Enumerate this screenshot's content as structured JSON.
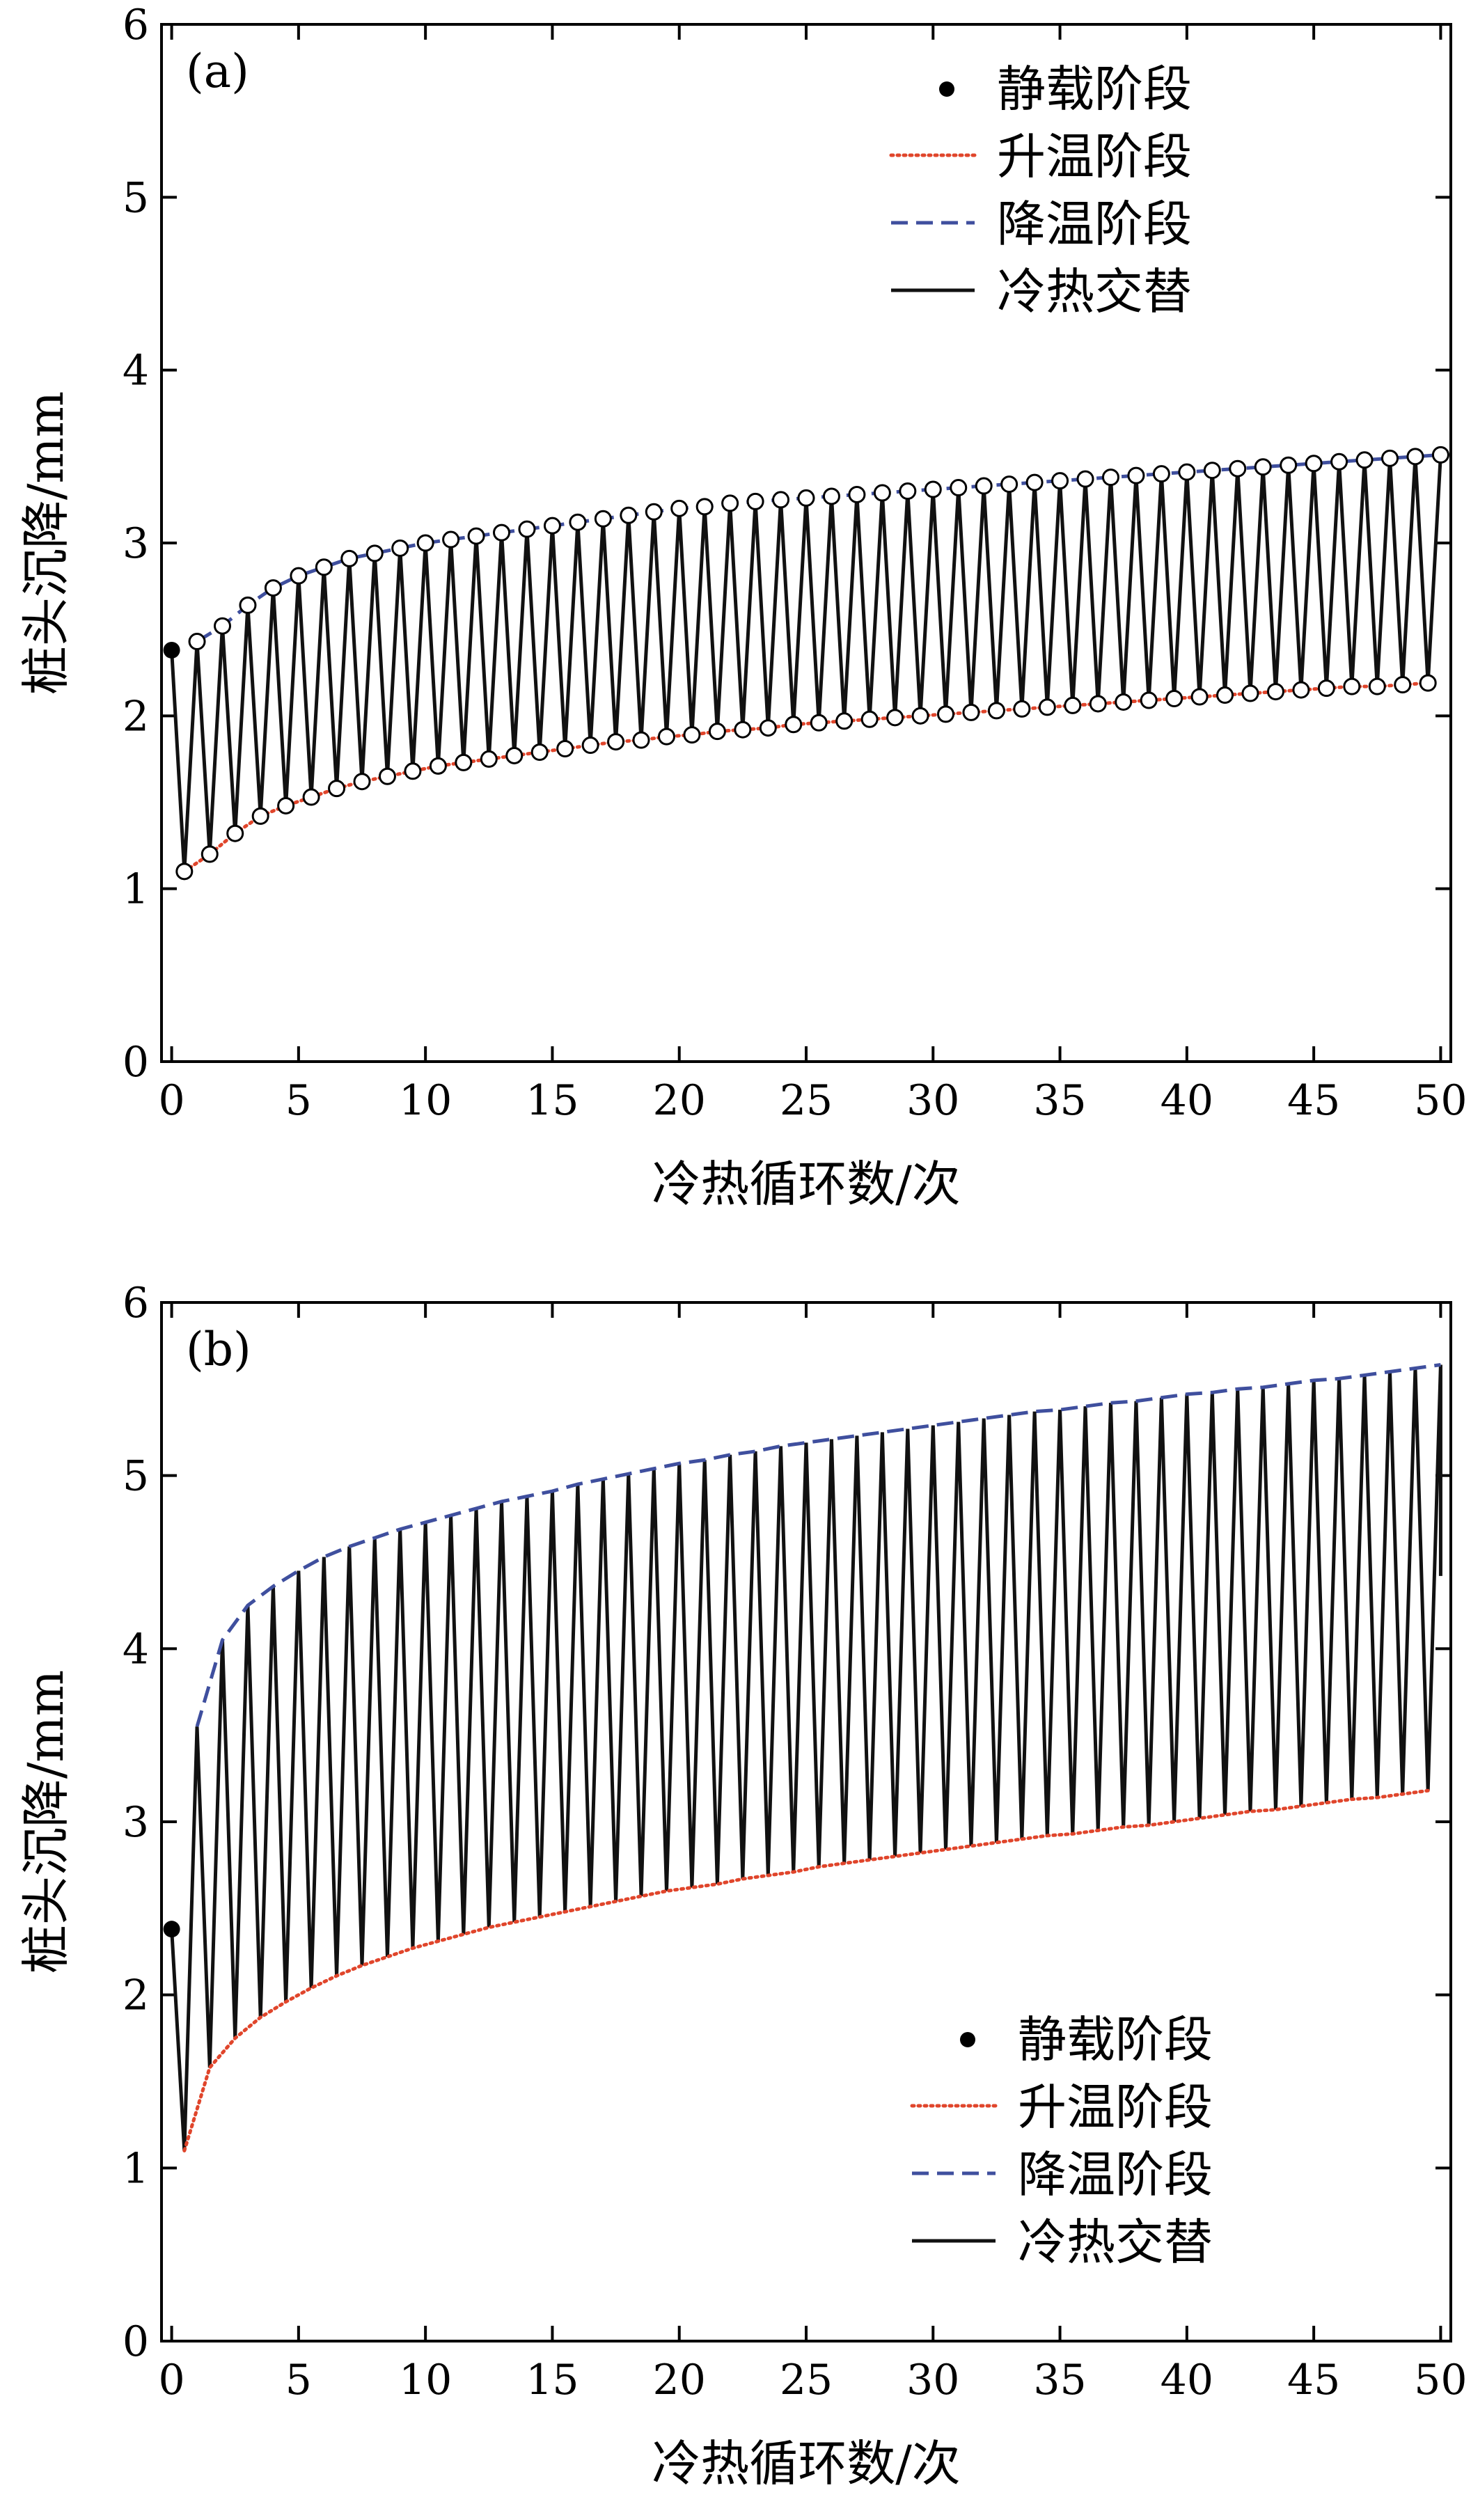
{
  "colors": {
    "heating": "#e0452b",
    "cooling": "#3f4f9e",
    "cycle": "#111111",
    "axis": "#000000"
  },
  "chart_data": [
    {
      "type": "line",
      "panel_label": "(a)",
      "xlabel": "冷热循环数/次",
      "ylabel": "桩头沉降/mm",
      "xlim": [
        -0.4,
        50.4
      ],
      "ylim": [
        0,
        6
      ],
      "xticks": [
        0,
        5,
        10,
        15,
        20,
        25,
        30,
        35,
        40,
        45,
        50
      ],
      "yticks": [
        0,
        1,
        2,
        3,
        4,
        5,
        6
      ],
      "grid": false,
      "legend_position": "top-right",
      "static_point": {
        "x": 0,
        "y": 2.38
      },
      "series": [
        {
          "name": "静载阶段",
          "style": "dot"
        },
        {
          "name": "升温阶段",
          "style": "dotted",
          "markers": "open-circle",
          "x": [
            0.5,
            1.5,
            2.5,
            3.5,
            4.5,
            5.5,
            6.5,
            7.5,
            8.5,
            9.5,
            10.5,
            11.5,
            12.5,
            13.5,
            14.5,
            15.5,
            16.5,
            17.5,
            18.5,
            19.5,
            20.5,
            21.5,
            22.5,
            23.5,
            24.5,
            25.5,
            26.5,
            27.5,
            28.5,
            29.5,
            30.5,
            31.5,
            32.5,
            33.5,
            34.5,
            35.5,
            36.5,
            37.5,
            38.5,
            39.5,
            40.5,
            41.5,
            42.5,
            43.5,
            44.5,
            45.5,
            46.5,
            47.5,
            48.5,
            49.5
          ],
          "y": [
            1.1,
            1.2,
            1.32,
            1.42,
            1.48,
            1.53,
            1.58,
            1.62,
            1.65,
            1.68,
            1.71,
            1.73,
            1.75,
            1.77,
            1.79,
            1.81,
            1.83,
            1.85,
            1.86,
            1.88,
            1.89,
            1.91,
            1.92,
            1.93,
            1.95,
            1.96,
            1.97,
            1.98,
            1.99,
            2.0,
            2.01,
            2.02,
            2.03,
            2.04,
            2.05,
            2.06,
            2.07,
            2.08,
            2.09,
            2.1,
            2.11,
            2.12,
            2.13,
            2.14,
            2.15,
            2.16,
            2.17,
            2.17,
            2.18,
            2.19
          ]
        },
        {
          "name": "降温阶段",
          "style": "dashed",
          "markers": "open-circle",
          "x": [
            1,
            2,
            3,
            4,
            5,
            6,
            7,
            8,
            9,
            10,
            11,
            12,
            13,
            14,
            15,
            16,
            17,
            18,
            19,
            20,
            21,
            22,
            23,
            24,
            25,
            26,
            27,
            28,
            29,
            30,
            31,
            32,
            33,
            34,
            35,
            36,
            37,
            38,
            39,
            40,
            41,
            42,
            43,
            44,
            45,
            46,
            47,
            48,
            49,
            50
          ],
          "y": [
            2.43,
            2.52,
            2.64,
            2.74,
            2.81,
            2.86,
            2.91,
            2.94,
            2.97,
            3.0,
            3.02,
            3.04,
            3.06,
            3.08,
            3.1,
            3.12,
            3.14,
            3.16,
            3.18,
            3.2,
            3.21,
            3.23,
            3.24,
            3.25,
            3.26,
            3.27,
            3.28,
            3.29,
            3.3,
            3.31,
            3.32,
            3.33,
            3.34,
            3.35,
            3.36,
            3.37,
            3.38,
            3.39,
            3.4,
            3.41,
            3.42,
            3.43,
            3.44,
            3.45,
            3.46,
            3.47,
            3.48,
            3.49,
            3.5,
            3.51
          ]
        },
        {
          "name": "冷热交替",
          "style": "solid"
        }
      ]
    },
    {
      "type": "line",
      "panel_label": "(b)",
      "xlabel": "冷热循环数/次",
      "ylabel": "桩头沉降/mm",
      "xlim": [
        -0.4,
        50.4
      ],
      "ylim": [
        0,
        6
      ],
      "xticks": [
        0,
        5,
        10,
        15,
        20,
        25,
        30,
        35,
        40,
        45,
        50
      ],
      "yticks": [
        0,
        1,
        2,
        3,
        4,
        5,
        6
      ],
      "grid": false,
      "legend_position": "bottom-right",
      "static_point": {
        "x": 0,
        "y": 2.38
      },
      "end_point": {
        "x": 50,
        "y": 4.42
      },
      "series": [
        {
          "name": "静载阶段",
          "style": "dot"
        },
        {
          "name": "升温阶段",
          "style": "dotted",
          "x": [
            0.5,
            1.5,
            2.5,
            3.5,
            4.5,
            5.5,
            6.5,
            7.5,
            8.5,
            9.5,
            10.5,
            11.5,
            12.5,
            13.5,
            14.5,
            15.5,
            16.5,
            17.5,
            18.5,
            19.5,
            20.5,
            21.5,
            22.5,
            23.5,
            24.5,
            25.5,
            26.5,
            27.5,
            28.5,
            29.5,
            30.5,
            31.5,
            32.5,
            33.5,
            34.5,
            35.5,
            36.5,
            37.5,
            38.5,
            39.5,
            40.5,
            41.5,
            42.5,
            43.5,
            44.5,
            45.5,
            46.5,
            47.5,
            48.5,
            49.5
          ],
          "y": [
            1.1,
            1.58,
            1.75,
            1.87,
            1.96,
            2.04,
            2.11,
            2.17,
            2.22,
            2.27,
            2.31,
            2.35,
            2.39,
            2.42,
            2.45,
            2.48,
            2.51,
            2.54,
            2.57,
            2.6,
            2.62,
            2.64,
            2.67,
            2.69,
            2.71,
            2.74,
            2.76,
            2.78,
            2.8,
            2.82,
            2.84,
            2.86,
            2.88,
            2.9,
            2.92,
            2.93,
            2.95,
            2.97,
            2.98,
            3.0,
            3.02,
            3.04,
            3.06,
            3.07,
            3.09,
            3.11,
            3.13,
            3.14,
            3.16,
            3.18
          ]
        },
        {
          "name": "降温阶段",
          "style": "dashed",
          "x": [
            1,
            2,
            3,
            4,
            5,
            6,
            7,
            8,
            9,
            10,
            11,
            12,
            13,
            14,
            15,
            16,
            17,
            18,
            19,
            20,
            21,
            22,
            23,
            24,
            25,
            26,
            27,
            28,
            29,
            30,
            31,
            32,
            33,
            34,
            35,
            36,
            37,
            38,
            39,
            40,
            41,
            42,
            43,
            44,
            45,
            46,
            47,
            48,
            49,
            50
          ],
          "y": [
            3.55,
            4.05,
            4.25,
            4.36,
            4.45,
            4.53,
            4.59,
            4.64,
            4.69,
            4.73,
            4.77,
            4.81,
            4.85,
            4.88,
            4.91,
            4.95,
            4.98,
            5.01,
            5.04,
            5.07,
            5.09,
            5.12,
            5.14,
            5.17,
            5.19,
            5.21,
            5.23,
            5.25,
            5.27,
            5.29,
            5.31,
            5.33,
            5.35,
            5.37,
            5.38,
            5.4,
            5.42,
            5.43,
            5.45,
            5.47,
            5.48,
            5.5,
            5.51,
            5.53,
            5.55,
            5.56,
            5.58,
            5.6,
            5.62,
            5.64
          ]
        },
        {
          "name": "冷热交替",
          "style": "solid"
        }
      ]
    }
  ]
}
